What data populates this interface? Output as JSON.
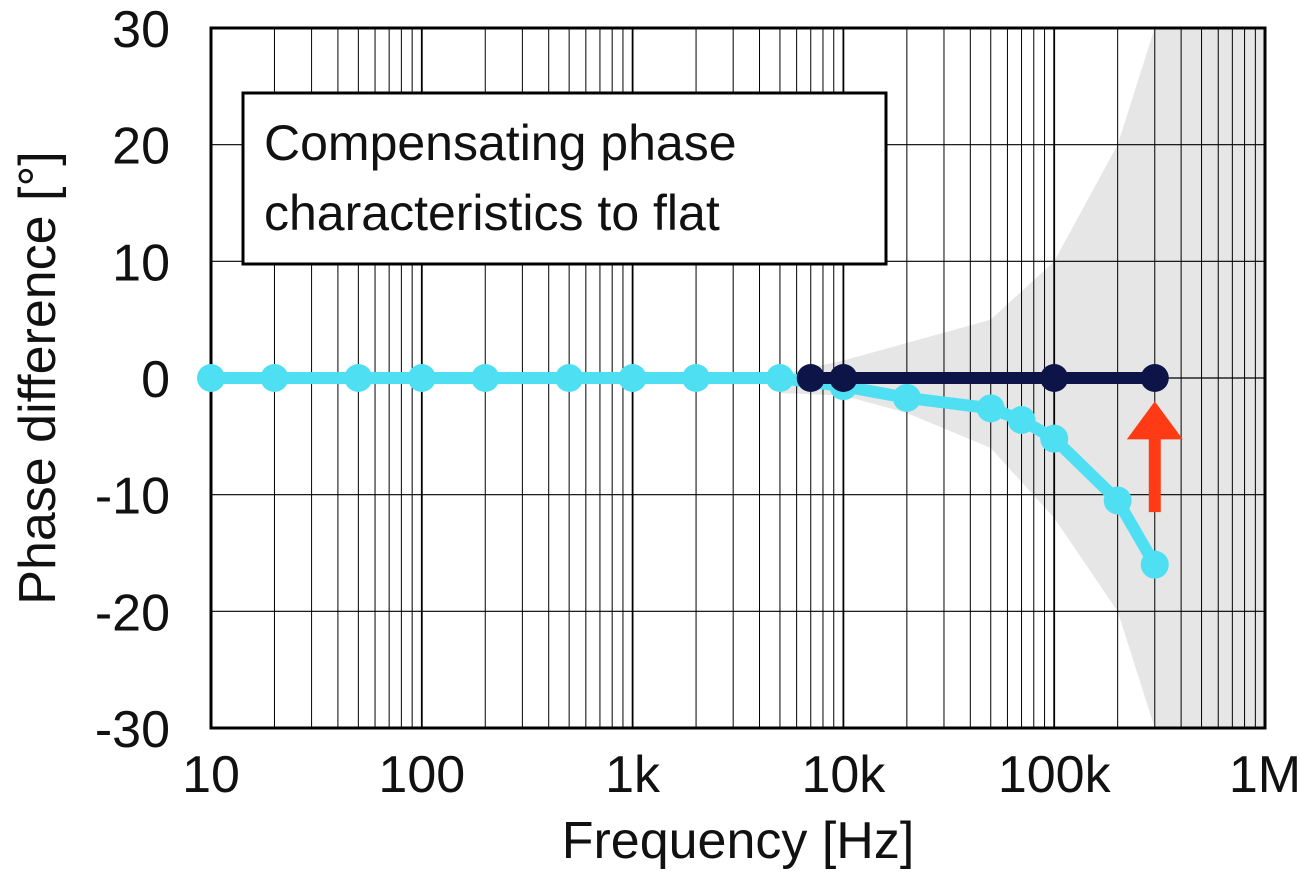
{
  "chart_data": {
    "type": "line",
    "title": "",
    "xlabel": "Frequency [Hz]",
    "ylabel": "Phase difference [°]",
    "x_scale": "log",
    "xlim": [
      10,
      1000000
    ],
    "ylim": [
      -30,
      30
    ],
    "x_ticks": [
      {
        "value": 10,
        "label": "10"
      },
      {
        "value": 100,
        "label": "100"
      },
      {
        "value": 1000,
        "label": "1k"
      },
      {
        "value": 10000,
        "label": "10k"
      },
      {
        "value": 100000,
        "label": "100k"
      },
      {
        "value": 1000000,
        "label": "1M"
      }
    ],
    "y_ticks": [
      {
        "value": 30,
        "label": "30"
      },
      {
        "value": 20,
        "label": "20"
      },
      {
        "value": 10,
        "label": "10"
      },
      {
        "value": 0,
        "label": "0"
      },
      {
        "value": -10,
        "label": "-10"
      },
      {
        "value": -20,
        "label": "-20"
      },
      {
        "value": -30,
        "label": "-30"
      }
    ],
    "grid": true,
    "annotation": {
      "lines": [
        "Compensating phase",
        "characteristics to flat"
      ],
      "position": "top-left"
    },
    "series": [
      {
        "color": "#4fdff2",
        "x": [
          10,
          20,
          50,
          100,
          200,
          500,
          1000,
          2000,
          5000,
          10000,
          20000,
          50000,
          70000,
          100000,
          200000,
          300000
        ],
        "y": [
          0,
          0,
          0,
          0,
          0,
          0,
          0,
          0,
          0,
          -0.7,
          -1.7,
          -2.6,
          -3.6,
          -5.2,
          -10.5,
          -16
        ]
      },
      {
        "color": "#0d1448",
        "x": [
          7000,
          10000,
          100000,
          300000
        ],
        "y": [
          0,
          0,
          0,
          0
        ]
      }
    ],
    "tolerance_band": {
      "color": "#e6e6e6",
      "x": [
        5000,
        10000,
        20000,
        50000,
        100000,
        200000,
        300000,
        1000000
      ],
      "upper": [
        0.3,
        1.5,
        3.0,
        5.0,
        10.0,
        20.0,
        30.0,
        30.0
      ],
      "lower": [
        -1.3,
        -1.5,
        -3.0,
        -6.0,
        -12.0,
        -20.0,
        -30.0,
        -30.0
      ]
    },
    "arrow": {
      "color": "#ff3b16",
      "x": 300000,
      "y_from": -11.5,
      "y_to": -2,
      "direction": "up"
    }
  }
}
